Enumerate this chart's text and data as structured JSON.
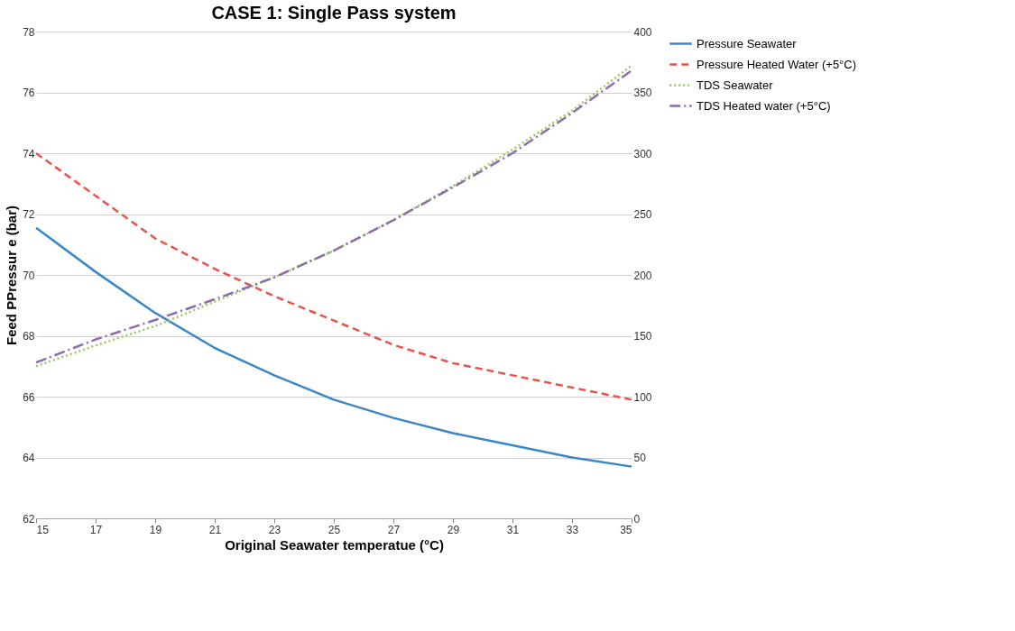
{
  "chart_data": {
    "type": "line",
    "title": "CASE 1: Single Pass system",
    "xlabel": "Original Seawater temperatue (°C)",
    "ylabel": "Feed PPressur e (bar)",
    "x": [
      15,
      17,
      19,
      21,
      23,
      25,
      27,
      29,
      31,
      33,
      35
    ],
    "series": [
      {
        "name": "Pressure Seawater",
        "color": "#3a87c8",
        "line_style": "solid",
        "values": [
          71.55,
          70.1,
          68.75,
          67.6,
          66.7,
          65.9,
          65.3,
          64.8,
          64.4,
          64.0,
          63.7
        ]
      },
      {
        "name": "Pressure Heated Water (+5°C)",
        "color": "#e8534a",
        "line_style": "dashed",
        "values": [
          74.0,
          72.6,
          71.2,
          70.2,
          69.3,
          68.5,
          67.7,
          67.1,
          66.7,
          66.3,
          65.9
        ]
      },
      {
        "name": "TDS Seawater",
        "color": "#9bc95a",
        "line_style": "dotted",
        "axis": "y2",
        "values": [
          125,
          142,
          158,
          178,
          198,
          220,
          245,
          273,
          303,
          335,
          372
        ]
      },
      {
        "name": "TDS Heated water (+5°C)",
        "color": "#8e6bb0",
        "line_style": "dashdot",
        "axis": "y2",
        "values": [
          128,
          147,
          163,
          180,
          198,
          220,
          245,
          272,
          300,
          333,
          368
        ]
      }
    ],
    "xlim": [
      15,
      35
    ],
    "xticks": [
      15,
      17,
      19,
      21,
      23,
      25,
      27,
      29,
      31,
      33,
      35
    ],
    "ylim": [
      62,
      78
    ],
    "yticks": [
      62,
      64,
      66,
      68,
      70,
      72,
      74,
      76,
      78
    ],
    "y2lim": [
      0,
      400
    ],
    "y2ticks": [
      0,
      50,
      100,
      150,
      200,
      250,
      300,
      350,
      400
    ],
    "grid": "y",
    "legend": "right",
    "marker": "none"
  }
}
